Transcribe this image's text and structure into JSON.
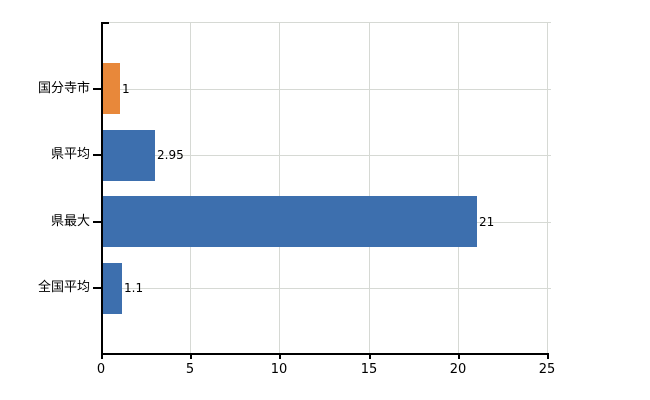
{
  "chart_data": {
    "type": "bar",
    "orientation": "horizontal",
    "title": "",
    "xlabel": "",
    "ylabel": "",
    "categories": [
      "国分寺市",
      "県平均",
      "県最大",
      "全国平均"
    ],
    "values": [
      1,
      2.95,
      21,
      1.1
    ],
    "value_labels": [
      "1",
      "2.95",
      "21",
      "1.1"
    ],
    "bar_colors": [
      "#e8883a",
      "#3d6fae",
      "#3d6fae",
      "#3d6fae"
    ],
    "xlim": [
      0,
      25
    ],
    "x_tick_values": [
      0,
      5,
      10,
      15,
      20,
      25
    ],
    "x_tick_labels": [
      "0",
      "5",
      "10",
      "15",
      "20",
      "25"
    ],
    "grid": true,
    "legend": false,
    "colors": {
      "grid": "#d6d9d4",
      "axis": "#000000",
      "text": "#000000",
      "background": "#ffffff"
    }
  }
}
